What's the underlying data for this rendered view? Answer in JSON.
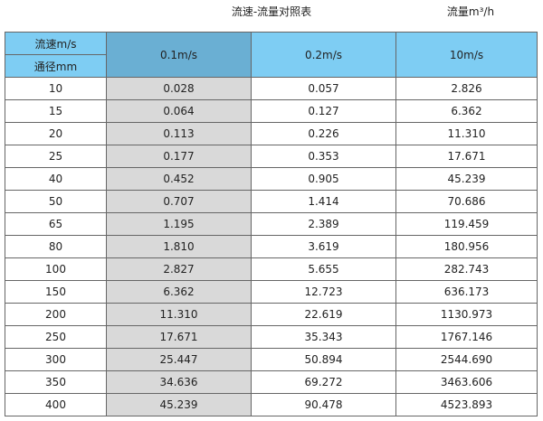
{
  "title": "流速-流量对照表",
  "unit": "流量m³/h",
  "header": {
    "velocity_label": "流速m/s",
    "diameter_label": "通径mm",
    "columns": [
      "0.1m/s",
      "0.2m/s",
      "10m/s"
    ]
  },
  "colors": {
    "header_blue": "#7ecdf3",
    "header_dark": "#6aafd3",
    "highlight_gray": "#d9d9d9"
  },
  "rows": [
    [
      "10",
      "0.028",
      "0.057",
      "2.826"
    ],
    [
      "15",
      "0.064",
      "0.127",
      "6.362"
    ],
    [
      "20",
      "0.113",
      "0.226",
      "11.310"
    ],
    [
      "25",
      "0.177",
      "0.353",
      "17.671"
    ],
    [
      "40",
      "0.452",
      "0.905",
      "45.239"
    ],
    [
      "50",
      "0.707",
      "1.414",
      "70.686"
    ],
    [
      "65",
      "1.195",
      "2.389",
      "119.459"
    ],
    [
      "80",
      "1.810",
      "3.619",
      "180.956"
    ],
    [
      "100",
      "2.827",
      "5.655",
      "282.743"
    ],
    [
      "150",
      "6.362",
      "12.723",
      "636.173"
    ],
    [
      "200",
      "11.310",
      "22.619",
      "1130.973"
    ],
    [
      "250",
      "17.671",
      "35.343",
      "1767.146"
    ],
    [
      "300",
      "25.447",
      "50.894",
      "2544.690"
    ],
    [
      "350",
      "34.636",
      "69.272",
      "3463.606"
    ],
    [
      "400",
      "45.239",
      "90.478",
      "4523.893"
    ]
  ]
}
